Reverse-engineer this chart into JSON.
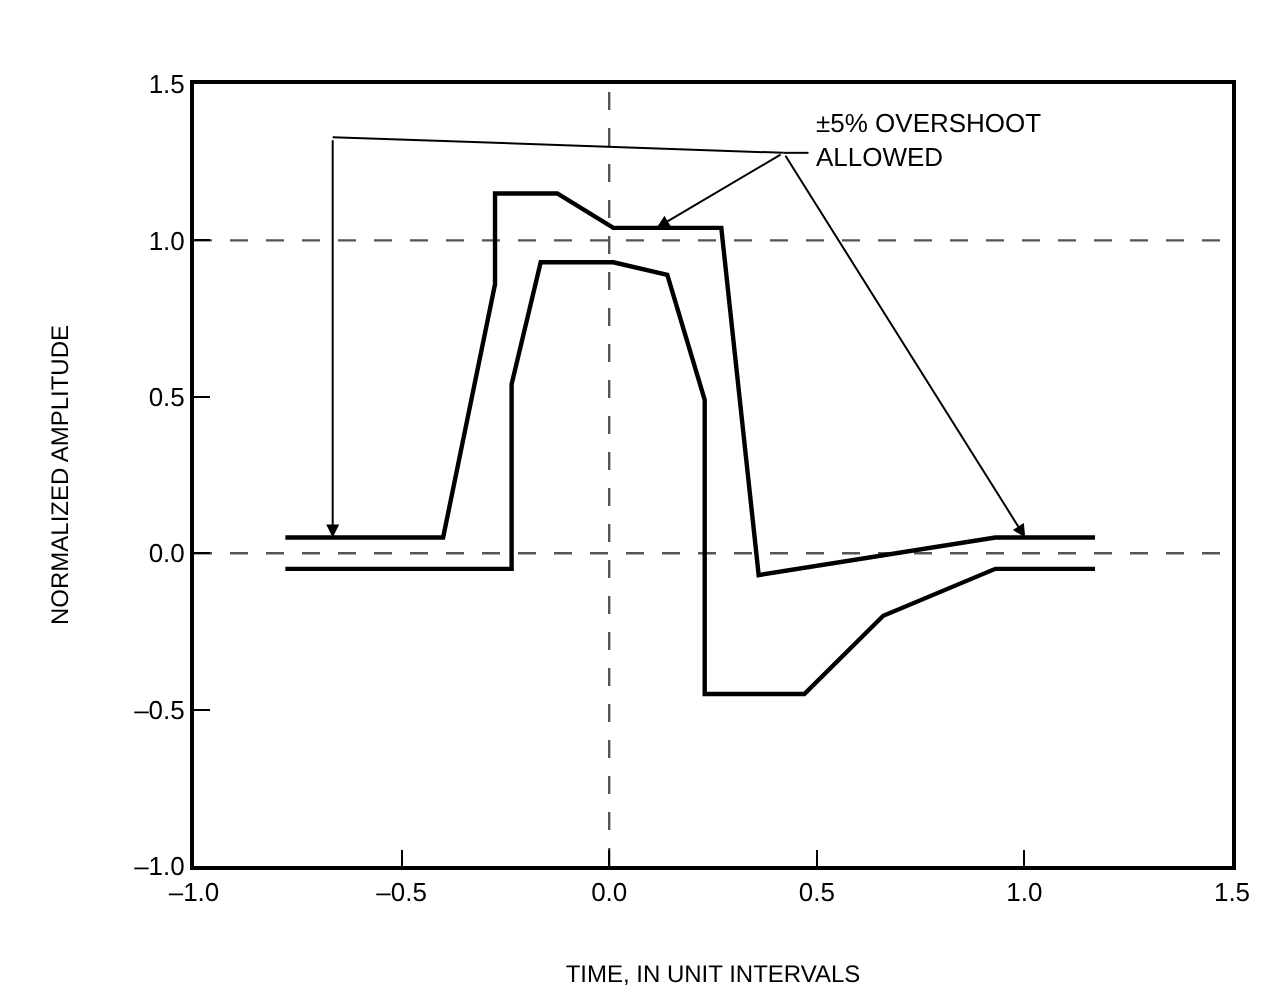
{
  "chart_data": {
    "type": "line",
    "xlabel": "TIME, IN UNIT INTERVALS",
    "ylabel": "NORMALIZED AMPLITUDE",
    "series": [
      {
        "color": "#000000",
        "x": [
          -0.78,
          -0.4,
          -0.275,
          -0.275,
          -0.125,
          0.01,
          0.27,
          0.36,
          0.93,
          1.17
        ],
        "values": [
          0.05,
          0.05,
          0.86,
          1.15,
          1.15,
          1.04,
          1.04,
          -0.07,
          0.05,
          0.05
        ]
      },
      {
        "color": "#000000",
        "x": [
          -0.78,
          -0.235,
          -0.235,
          -0.165,
          0.01,
          0.14,
          0.23,
          0.23,
          0.47,
          0.66,
          0.93,
          1.17
        ],
        "values": [
          -0.05,
          -0.05,
          0.54,
          0.93,
          0.93,
          0.89,
          0.49,
          -0.45,
          -0.45,
          -0.2,
          -0.05,
          -0.05
        ]
      }
    ],
    "xlim": [
      -1,
      1.5
    ],
    "ylim": [
      -1,
      1.5
    ],
    "xticks": [
      {
        "value": -1,
        "label": "–1.0"
      },
      {
        "value": -0.5,
        "label": "–0.5"
      },
      {
        "value": 0,
        "label": "0.0"
      },
      {
        "value": 0.5,
        "label": "0.5"
      },
      {
        "value": 1,
        "label": "1.0"
      },
      {
        "value": 1.5,
        "label": "1.5"
      }
    ],
    "yticks": [
      {
        "value": -1,
        "label": "–1.0"
      },
      {
        "value": -0.5,
        "label": "–0.5"
      },
      {
        "value": 0,
        "label": "0.0"
      },
      {
        "value": 0.5,
        "label": "0.5"
      },
      {
        "value": 1,
        "label": "1.0"
      },
      {
        "value": 1.5,
        "label": "1.5"
      }
    ],
    "ref_lines": [
      {
        "axis": "y",
        "value": 0,
        "color": "#555555",
        "line_style": "dashed"
      },
      {
        "axis": "y",
        "value": 1,
        "color": "#555555",
        "line_style": "dashed"
      },
      {
        "axis": "x",
        "value": 0,
        "color": "#555555",
        "line_style": "dashed"
      }
    ],
    "annotations": [
      "±5% OVERSHOOT\nALLOWED"
    ],
    "grid": false,
    "marker": "none",
    "line_style": "solid"
  }
}
